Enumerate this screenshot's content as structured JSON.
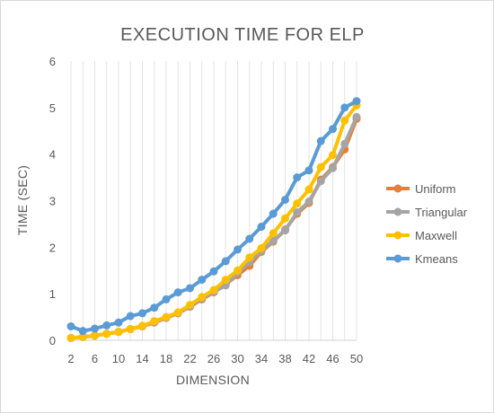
{
  "chart_data": {
    "type": "line",
    "title": "EXECUTION TIME FOR ELP",
    "xlabel": "DIMENSION",
    "ylabel": "TIME (SEC)",
    "x": [
      2,
      4,
      6,
      8,
      10,
      12,
      14,
      16,
      18,
      20,
      22,
      24,
      26,
      28,
      30,
      32,
      34,
      36,
      38,
      40,
      42,
      44,
      46,
      48,
      50
    ],
    "x_tick_labels": [
      "2",
      "6",
      "10",
      "14",
      "18",
      "22",
      "26",
      "30",
      "34",
      "38",
      "42",
      "46",
      "50"
    ],
    "y_ticks": [
      "0",
      "1",
      "2",
      "3",
      "4",
      "5",
      "6"
    ],
    "ylim": [
      0,
      6
    ],
    "grid": "vertical-major",
    "legend_position": "right",
    "series": [
      {
        "name": "Uniform",
        "color": "#ED7D31",
        "values": [
          0.05,
          0.07,
          0.1,
          0.14,
          0.18,
          0.24,
          0.3,
          0.38,
          0.48,
          0.58,
          0.72,
          0.88,
          1.03,
          1.2,
          1.4,
          1.6,
          1.9,
          2.12,
          2.38,
          2.72,
          2.95,
          3.45,
          3.72,
          4.1,
          4.76
        ]
      },
      {
        "name": "Triangular",
        "color": "#A5A5A5",
        "values": [
          0.05,
          0.07,
          0.1,
          0.14,
          0.18,
          0.24,
          0.31,
          0.39,
          0.49,
          0.59,
          0.73,
          0.9,
          1.04,
          1.18,
          1.45,
          1.68,
          1.92,
          2.14,
          2.36,
          2.75,
          2.98,
          3.42,
          3.7,
          4.22,
          4.8
        ]
      },
      {
        "name": "Maxwell",
        "color": "#FFC000",
        "values": [
          0.05,
          0.07,
          0.1,
          0.14,
          0.18,
          0.24,
          0.31,
          0.41,
          0.5,
          0.6,
          0.76,
          0.93,
          1.08,
          1.3,
          1.5,
          1.78,
          1.98,
          2.3,
          2.62,
          2.94,
          3.24,
          3.72,
          3.98,
          4.72,
          5.05
        ]
      },
      {
        "name": "Kmeans",
        "color": "#5B9BD5",
        "values": [
          0.3,
          0.2,
          0.25,
          0.32,
          0.38,
          0.52,
          0.58,
          0.7,
          0.88,
          1.03,
          1.12,
          1.3,
          1.48,
          1.7,
          1.95,
          2.18,
          2.44,
          2.72,
          3.02,
          3.5,
          3.65,
          4.28,
          4.54,
          5.0,
          5.14
        ]
      }
    ]
  }
}
